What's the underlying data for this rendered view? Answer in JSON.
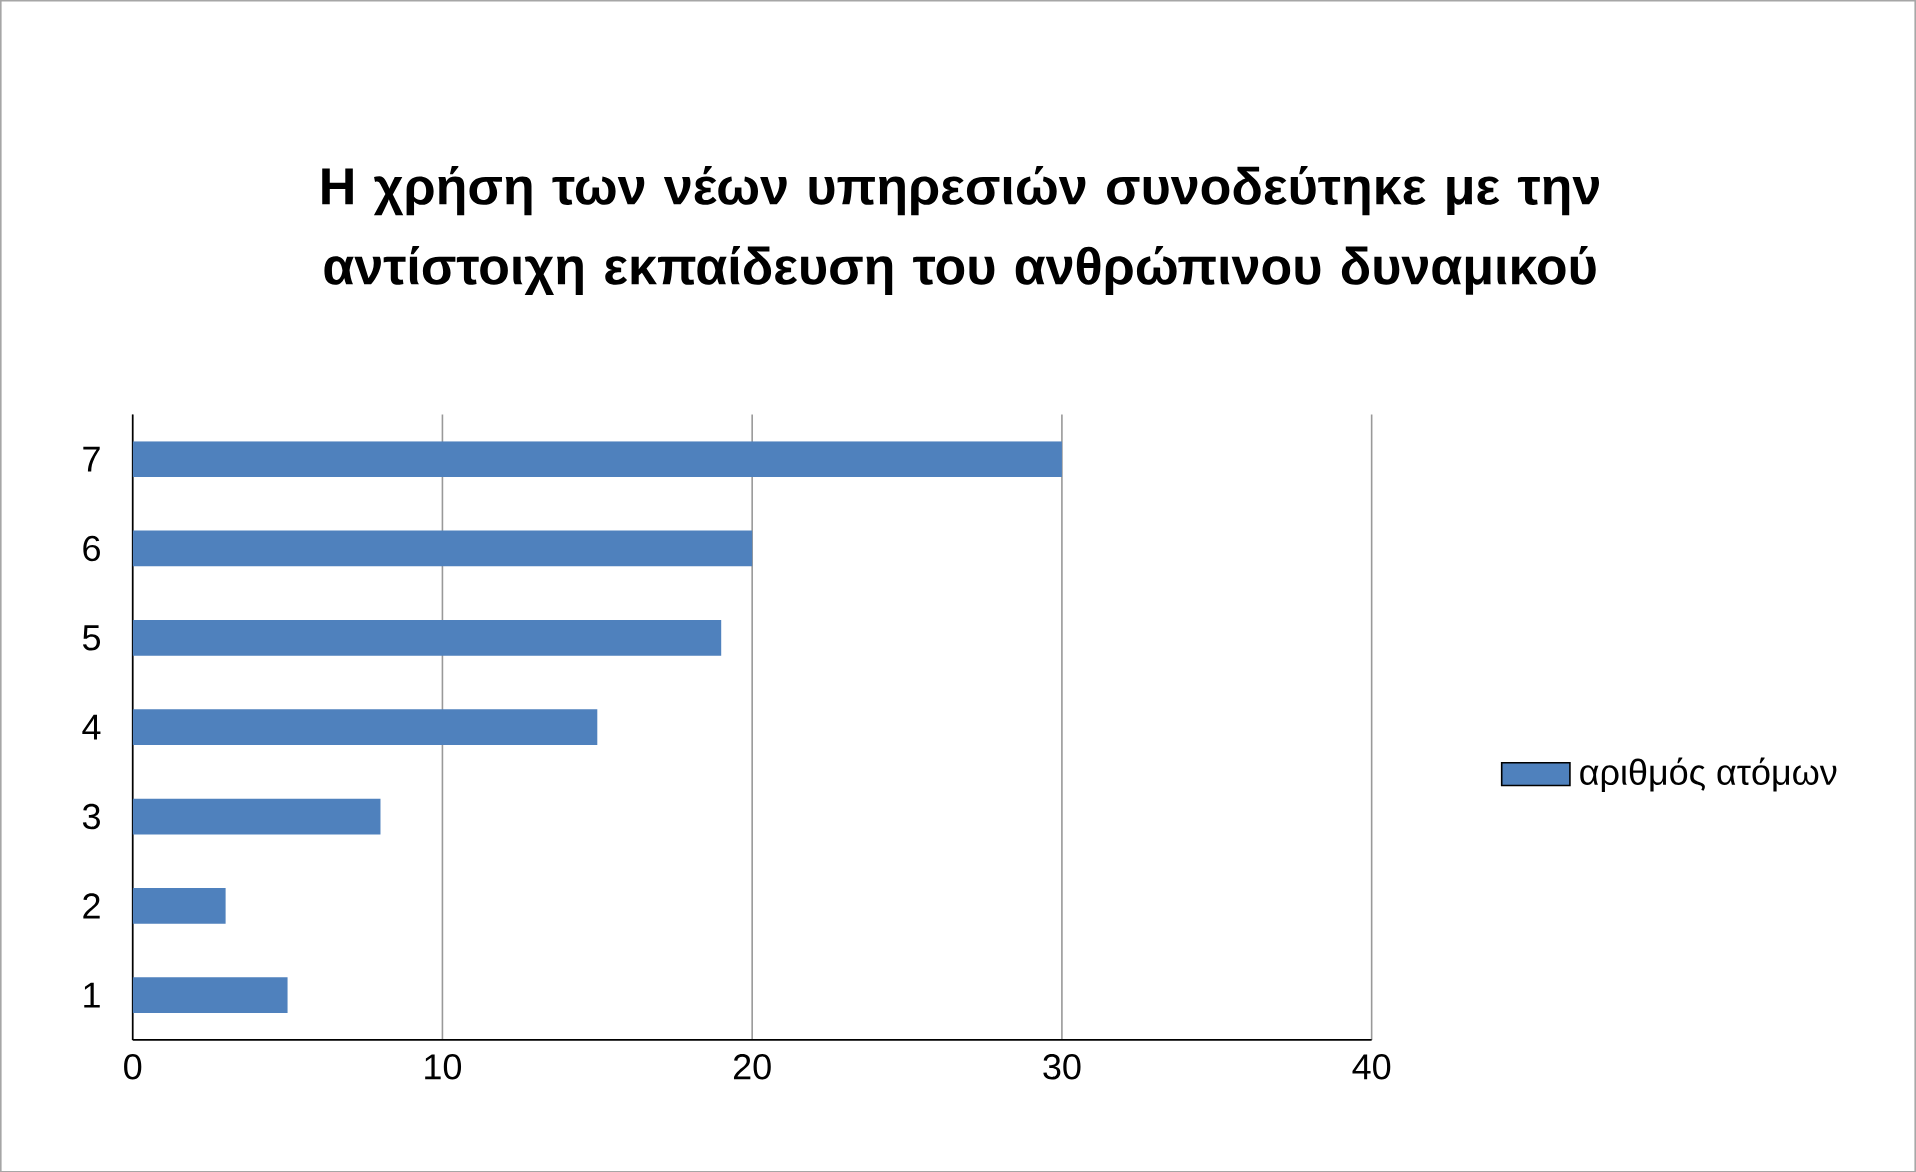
{
  "chart_data": {
    "type": "bar",
    "orientation": "horizontal",
    "title": "Η χρήση των νέων υπηρεσιών συνοδεύτηκε με την αντίστοιχη εκπαίδευση του ανθρώπινου δυναμικού",
    "categories": [
      "7",
      "6",
      "5",
      "4",
      "3",
      "2",
      "1"
    ],
    "series": [
      {
        "name": "αριθμός ατόμων",
        "color": "#4f81bd",
        "values": [
          30,
          20,
          19,
          15,
          8,
          3,
          5
        ]
      }
    ],
    "xlim": [
      0,
      40
    ],
    "xticks": [
      0,
      10,
      20,
      30,
      40
    ],
    "grid": "x",
    "legend": "right"
  }
}
